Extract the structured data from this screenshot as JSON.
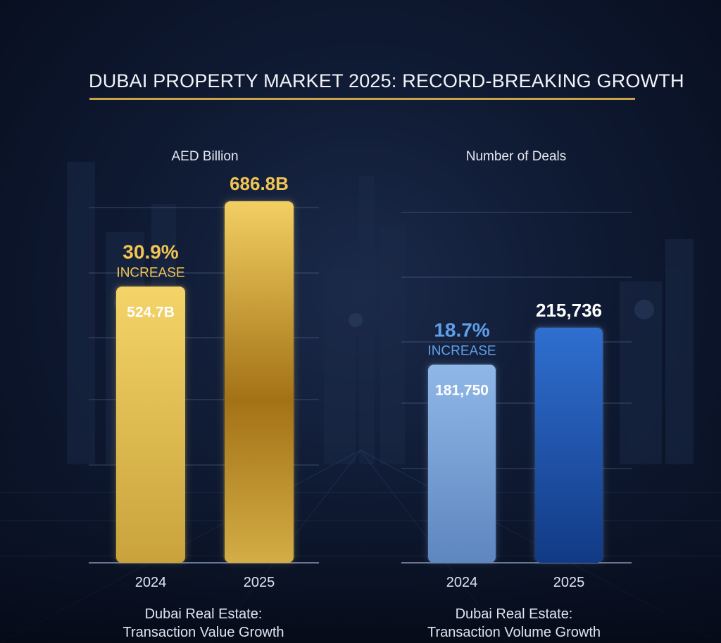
{
  "title": "DUBAI PROPERTY MARKET 2025: RECORD-BREAKING GROWTH",
  "colors": {
    "accent_rule": "#caa247",
    "gold_light": "#f4d468",
    "gold_dark": "#a37215",
    "blue_light": "#8fb8e8",
    "blue_dark": "#2a63bf",
    "gold_text": "#f2c552",
    "blue_text": "#5fa0ea"
  },
  "chart_data": [
    {
      "type": "bar",
      "unit_label": "AED Billion",
      "categories": [
        "2024",
        "2025"
      ],
      "values": [
        524.7,
        686.8
      ],
      "value_labels": [
        "524.7B",
        "686.8B"
      ],
      "ylim": [
        0,
        735
      ],
      "gridlines": true,
      "growth": {
        "percent": "30.9%",
        "label": "INCREASE"
      },
      "caption": [
        "Dubai Real Estate:",
        "Transaction Value Growth"
      ]
    },
    {
      "type": "bar",
      "unit_label": "Number of Deals",
      "categories": [
        "2024",
        "2025"
      ],
      "values": [
        181750,
        215736
      ],
      "value_labels": [
        "181,750",
        "215,736"
      ],
      "ylim": [
        0,
        355000
      ],
      "gridlines": true,
      "growth": {
        "percent": "18.7%",
        "label": "INCREASE"
      },
      "caption": [
        "Dubai Real Estate:",
        "Transaction Volume Growth"
      ]
    }
  ]
}
